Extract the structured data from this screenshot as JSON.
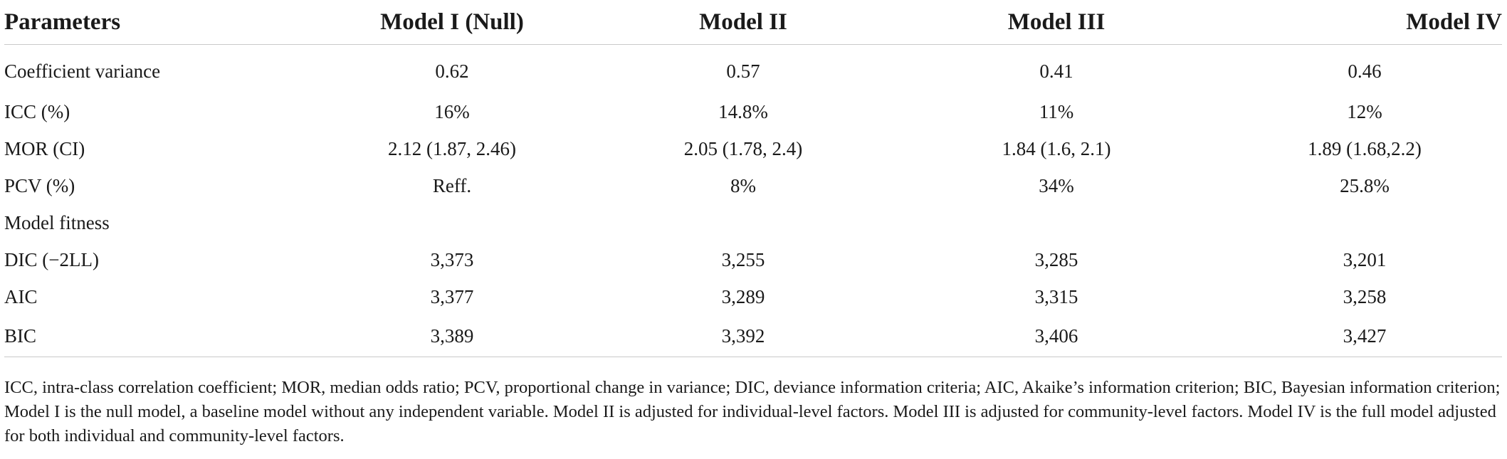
{
  "table": {
    "headers": [
      "Parameters",
      "Model I (Null)",
      "Model II",
      "Model III",
      "Model IV"
    ],
    "rows_a": [
      [
        "Coefficient variance",
        "0.62",
        "0.57",
        "0.41",
        "0.46"
      ],
      [
        "ICC (%)",
        "16%",
        "14.8%",
        "11%",
        "12%"
      ],
      [
        "MOR (CI)",
        "2.12 (1.87, 2.46)",
        "2.05 (1.78, 2.4)",
        "1.84 (1.6, 2.1)",
        "1.89 (1.68,2.2)"
      ],
      [
        "PCV (%)",
        "Reff.",
        "8%",
        "34%",
        "25.8%"
      ]
    ],
    "section_label": "Model fitness",
    "rows_b": [
      [
        "DIC (−2LL)",
        "3,373",
        "3,255",
        "3,285",
        "3,201"
      ],
      [
        "AIC",
        "3,377",
        "3,289",
        "3,315",
        "3,258"
      ],
      [
        "BIC",
        "3,389",
        "3,392",
        "3,406",
        "3,427"
      ]
    ]
  },
  "footnote": "ICC, intra-class correlation coefficient; MOR, median odds ratio; PCV,  proportional change in variance; DIC, deviance information criteria; AIC, Akaike’s information criterion; BIC, Bayesian information criterion; Model I is the null model, a baseline model without any independent variable. Model II is adjusted for individual-level factors. Model III is adjusted for community-level factors. Model IV is the full model adjusted for both individual and community-level factors."
}
